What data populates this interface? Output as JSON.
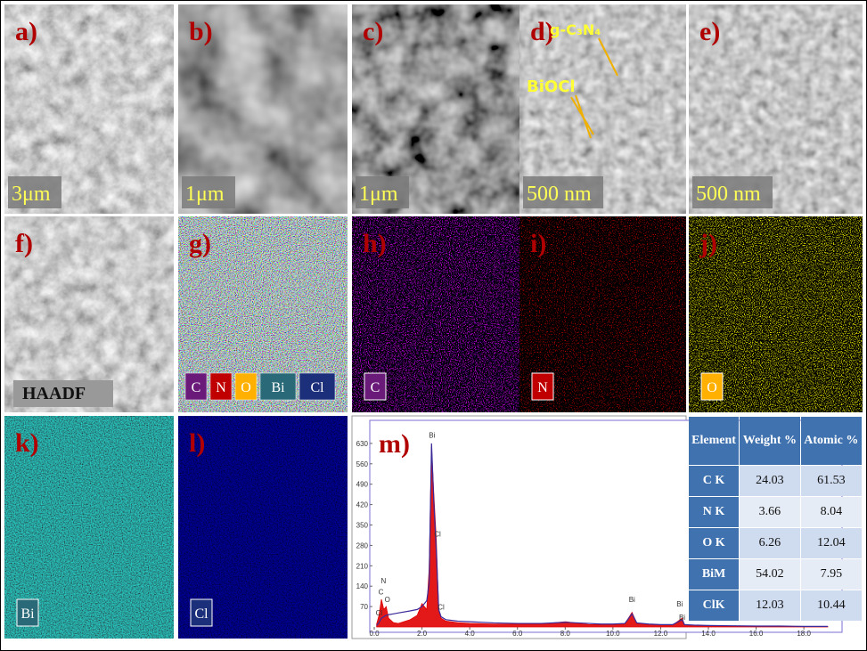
{
  "panels": [
    {
      "label": "a)",
      "scale_bar": "3μm"
    },
    {
      "label": "b)",
      "scale_bar": "1μm"
    },
    {
      "label": "c)",
      "scale_bar": "1μm"
    },
    {
      "label": "d)",
      "scale_bar": "500 nm",
      "annotations": [
        "g-C₃N₄",
        "BiOCl"
      ]
    },
    {
      "label": "e)",
      "scale_bar": "500 nm"
    },
    {
      "label": "f)",
      "tag": "HAADF"
    },
    {
      "label": "g)",
      "legend": [
        "C",
        "N",
        "O",
        "Bi",
        "Cl"
      ]
    },
    {
      "label": "h)",
      "tag": "C"
    },
    {
      "label": "i)",
      "tag": "N"
    },
    {
      "label": "j)",
      "tag": "O"
    },
    {
      "label": "k)",
      "tag": "Bi"
    },
    {
      "label": "l)",
      "tag": "Cl"
    }
  ],
  "chart_data": {
    "type": "area",
    "title": "m)",
    "x": [
      0.1,
      0.2,
      0.3,
      0.4,
      0.5,
      0.6,
      0.8,
      1.0,
      1.5,
      1.8,
      2.0,
      2.2,
      2.3,
      2.4,
      2.5,
      2.6,
      2.7,
      2.8,
      3.0,
      3.5,
      4.0,
      5.0,
      6.0,
      7.0,
      8.0,
      9.0,
      9.5,
      10.0,
      10.5,
      10.8,
      11.0,
      11.5,
      12.0,
      12.5,
      12.9,
      13.0,
      13.5,
      14.0,
      15.0,
      16.0,
      17.0,
      18.0,
      19.0
    ],
    "series": [
      {
        "color": "#e00000",
        "values": [
          10,
          40,
          95,
          60,
          70,
          30,
          15,
          12,
          25,
          40,
          80,
          60,
          200,
          620,
          450,
          300,
          60,
          30,
          20,
          15,
          12,
          10,
          10,
          10,
          18,
          8,
          8,
          8,
          10,
          50,
          12,
          8,
          6,
          6,
          30,
          8,
          5,
          4,
          3,
          3,
          2,
          2,
          2
        ]
      },
      {
        "color": "#3a2a9a",
        "values": [
          5,
          15,
          30,
          35,
          40,
          42,
          45,
          48,
          55,
          60,
          70,
          90,
          150,
          630,
          420,
          260,
          60,
          35,
          25,
          20,
          18,
          14,
          12,
          12,
          16,
          12,
          10,
          10,
          12,
          45,
          14,
          10,
          8,
          8,
          25,
          8,
          6,
          5,
          4,
          3,
          3,
          2,
          2
        ]
      }
    ],
    "peak_labels": [
      {
        "text": "Bi",
        "x": 2.42,
        "y": 650
      },
      {
        "text": "Cl",
        "x": 2.65,
        "y": 310
      },
      {
        "text": "Cl",
        "x": 2.8,
        "y": 60
      },
      {
        "text": "N",
        "x": 0.39,
        "y": 150
      },
      {
        "text": "C",
        "x": 0.28,
        "y": 112
      },
      {
        "text": "O",
        "x": 0.55,
        "y": 85
      },
      {
        "text": "Cl",
        "x": 0.2,
        "y": 40
      },
      {
        "text": "Bi",
        "x": 10.8,
        "y": 85
      },
      {
        "text": "Bi",
        "x": 12.8,
        "y": 70
      },
      {
        "text": "Bi",
        "x": 12.9,
        "y": 25
      }
    ],
    "xlim": [
      0,
      19.6
    ],
    "ylim": [
      0,
      700
    ],
    "xticks": [
      {
        "value": 0,
        "label": "0.0"
      },
      {
        "value": 2,
        "label": "2.0"
      },
      {
        "value": 4,
        "label": "4.0"
      },
      {
        "value": 6,
        "label": "6.0"
      },
      {
        "value": 8,
        "label": "8.0"
      },
      {
        "value": 10,
        "label": "10.0"
      },
      {
        "value": 12,
        "label": "12.0"
      },
      {
        "value": 14,
        "label": "14.0"
      },
      {
        "value": 16,
        "label": "16.0"
      },
      {
        "value": 18,
        "label": "18.0"
      }
    ],
    "yticks": [
      70,
      140,
      210,
      280,
      350,
      420,
      490,
      560,
      630
    ]
  },
  "table": {
    "header": [
      "Element",
      "Weight %",
      "Atomic %"
    ],
    "rows": [
      [
        "C K",
        24.03,
        61.53
      ],
      [
        "N K",
        3.66,
        8.04
      ],
      [
        "O K",
        6.26,
        12.04
      ],
      [
        "BiM",
        54.02,
        7.95
      ],
      [
        "ClK",
        12.03,
        10.44
      ]
    ]
  }
}
